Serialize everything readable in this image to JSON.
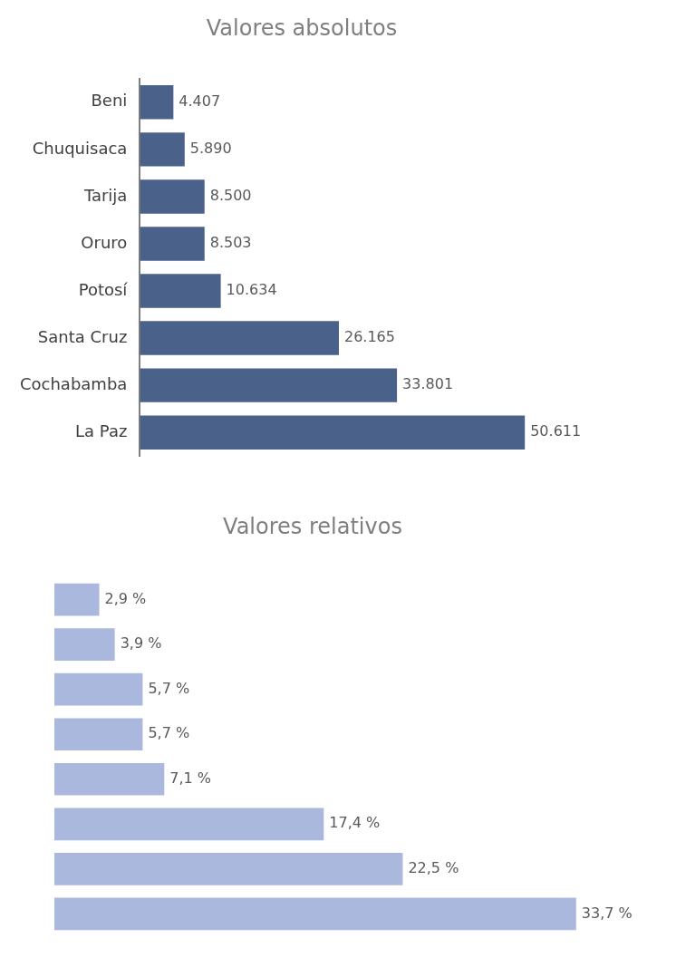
{
  "chart_data": [
    {
      "type": "bar",
      "orientation": "horizontal",
      "title": "Valores absolutos",
      "categories": [
        "Beni",
        "Chuquisaca",
        "Tarija",
        "Oruro",
        "Potosí",
        "Santa Cruz",
        "Cochabamba",
        "La Paz"
      ],
      "values": [
        4407,
        5890,
        8500,
        8503,
        10634,
        26165,
        33801,
        50611
      ],
      "value_labels": [
        "4.407",
        "5.890",
        "8.500",
        "8.503",
        "10.634",
        "26.165",
        "33.801",
        "50.611"
      ],
      "color": "#4a6189"
    },
    {
      "type": "bar",
      "orientation": "horizontal",
      "title": "Valores relativos",
      "categories": [
        null,
        null,
        null,
        null,
        null,
        null,
        null,
        null
      ],
      "values": [
        2.9,
        3.9,
        5.7,
        5.7,
        7.1,
        17.4,
        22.5,
        33.7
      ],
      "value_labels": [
        "2,9 %",
        "3,9 %",
        "5,7 %",
        "5,7 %",
        "7,1 %",
        "17,4 %",
        "22,5 %",
        "33,7 %"
      ],
      "color": "#abb8de"
    }
  ]
}
